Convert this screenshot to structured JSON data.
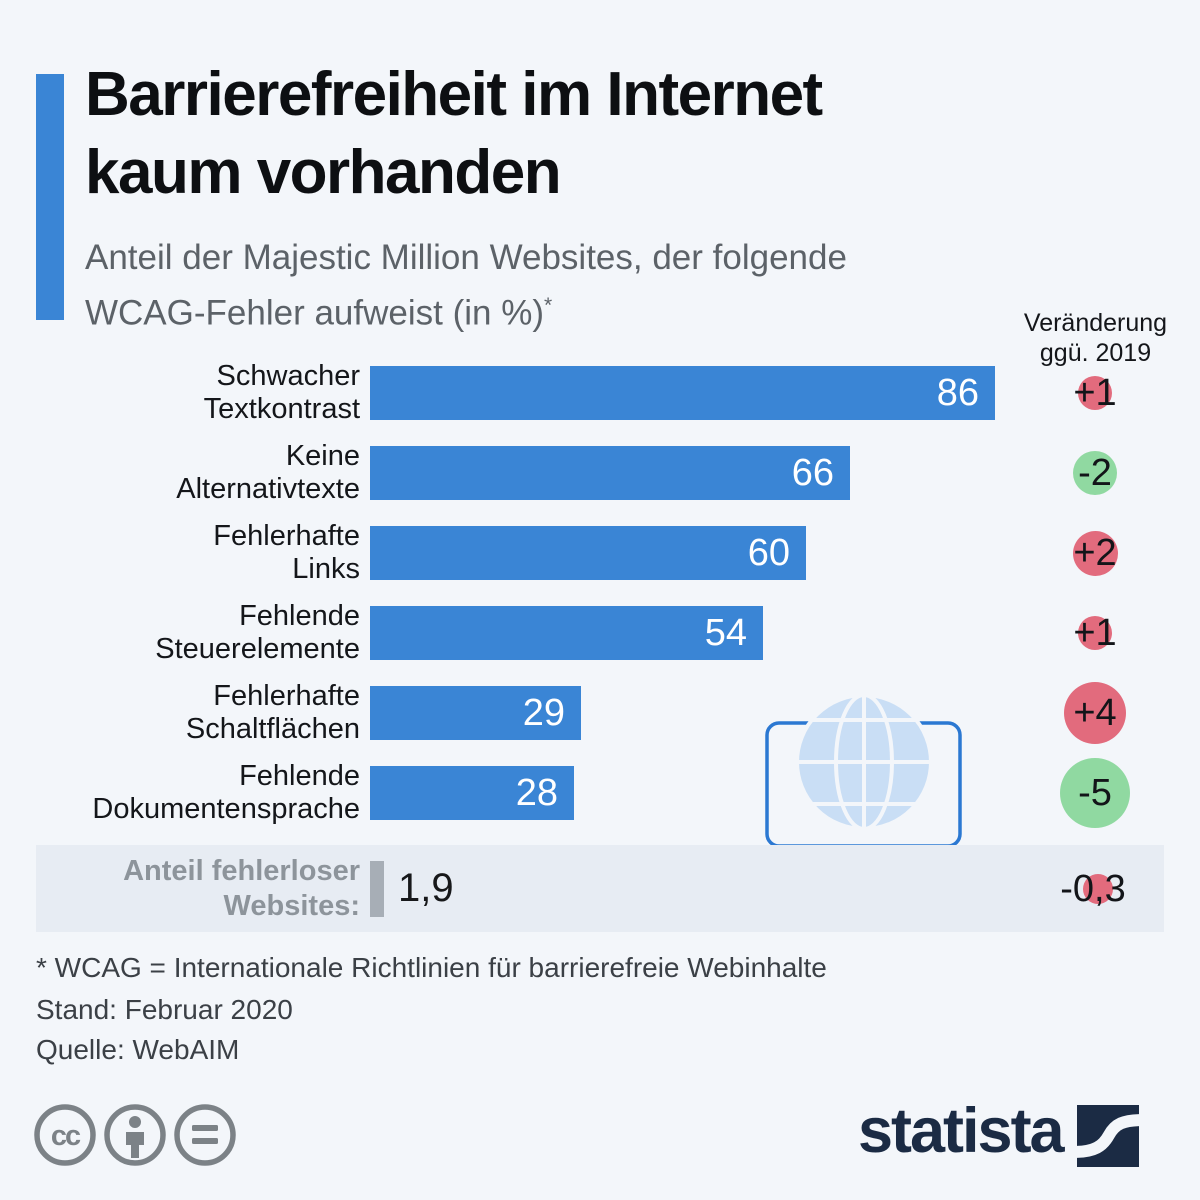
{
  "colors": {
    "background": "#f3f6fa",
    "accent_blue": "#3a85d5",
    "bar_blue": "#3a85d5",
    "band_background": "#e7ecf3",
    "increase_circle_red": "#e26b7d",
    "decrease_circle_green": "#90d9a1",
    "summary_bar_gray": "#a7aeb6",
    "logo_navy": "#1b2b44",
    "license_icon_gray": "#7c8287"
  },
  "header": {
    "title_lines": [
      "Barrierefreiheit im Internet",
      "kaum vorhanden"
    ],
    "subtitle_lines": [
      "Anteil der Majestic Million Websites, der folgende",
      "WCAG-Fehler aufweist (in %)"
    ],
    "footnote_marker": "*"
  },
  "change_column": {
    "header_lines": [
      "Veränderung",
      "ggü. 2019"
    ]
  },
  "chart_data": {
    "type": "bar",
    "orientation": "horizontal",
    "title": "Barrierefreiheit im Internet kaum vorhanden",
    "subtitle": "Anteil der Majestic Million Websites, der folgende WCAG-Fehler aufweist (in %)*",
    "categories": [
      "Schwacher Textkontrast",
      "Keine Alternativtexte",
      "Fehlerhafte Links",
      "Fehlende Steuerelemente",
      "Fehlerhafte Schaltflächen",
      "Fehlende Dokumentensprache"
    ],
    "values": [
      86,
      66,
      60,
      54,
      29,
      28
    ],
    "changes_vs_2019": [
      1,
      -2,
      2,
      1,
      4,
      -5
    ],
    "xlim": [
      0,
      100
    ],
    "unit": "%",
    "bar_color": "#3a85d5",
    "legend": "none",
    "grid": false,
    "summary": {
      "label": "Anteil fehlerloser Websites:",
      "value": 1.9,
      "change_vs_2019": -0.3
    }
  },
  "rows": [
    {
      "label_lines": [
        "Schwacher",
        "Textkontrast"
      ],
      "value": 86,
      "value_label": "86",
      "change_label": "+1",
      "circle_color": "#e26b7d",
      "circle_size": 34
    },
    {
      "label_lines": [
        "Keine",
        "Alternativtexte"
      ],
      "value": 66,
      "value_label": "66",
      "change_label": "-2",
      "circle_color": "#90d9a1",
      "circle_size": 44
    },
    {
      "label_lines": [
        "Fehlerhafte",
        "Links"
      ],
      "value": 60,
      "value_label": "60",
      "change_label": "+2",
      "circle_color": "#e26b7d",
      "circle_size": 45
    },
    {
      "label_lines": [
        "Fehlende",
        "Steuerelemente"
      ],
      "value": 54,
      "value_label": "54",
      "change_label": "+1",
      "circle_color": "#e26b7d",
      "circle_size": 34
    },
    {
      "label_lines": [
        "Fehlerhafte",
        "Schaltflächen"
      ],
      "value": 29,
      "value_label": "29",
      "change_label": "+4",
      "circle_color": "#e26b7d",
      "circle_size": 62
    },
    {
      "label_lines": [
        "Fehlende",
        "Dokumentensprache"
      ],
      "value": 28,
      "value_label": "28",
      "change_label": "-5",
      "circle_color": "#90d9a1",
      "circle_size": 70
    }
  ],
  "summary_row": {
    "label_lines": [
      "Anteil fehlerloser",
      "Websites:"
    ],
    "value_label": "1,9",
    "change_label": "-0,3"
  },
  "footer": {
    "footnote": "* WCAG = Internationale Richtlinien für barrierefreie Webinhalte",
    "stand": "Stand: Februar 2020",
    "quelle": "Quelle: WebAIM"
  },
  "branding": {
    "logo_text": "statista"
  }
}
